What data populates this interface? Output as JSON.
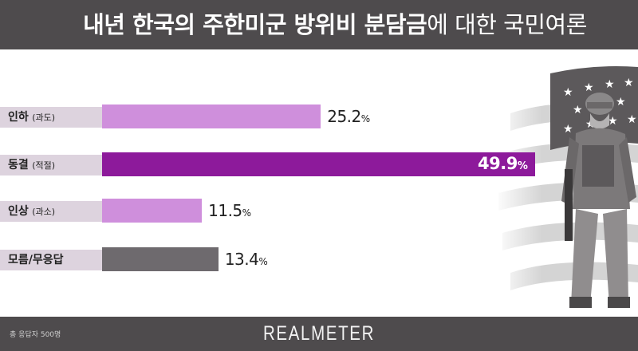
{
  "header": {
    "title_bold": "내년 한국의 주한미군 방위비 분담금",
    "title_light": "에 대한 국민여론"
  },
  "chart_data": {
    "type": "bar",
    "orientation": "horizontal",
    "title": "내년 한국의 주한미군 방위비 분담금에 대한 국민여론",
    "categories": [
      {
        "main": "인하",
        "sub": "(과도)"
      },
      {
        "main": "동결",
        "sub": "(적절)"
      },
      {
        "main": "인상",
        "sub": "(과소)"
      },
      {
        "main": "모름/무응답",
        "sub": ""
      }
    ],
    "values": [
      25.2,
      49.9,
      11.5,
      13.4
    ],
    "value_unit": "%",
    "colors": [
      "#cf8fdc",
      "#8d1a9b",
      "#cf8fdc",
      "#6e6a6e"
    ],
    "highlight_index": 1,
    "grid": false,
    "legend": "none"
  },
  "footer": {
    "note": "총 응답자 500명",
    "brand": "REALMETER"
  },
  "decoration": {
    "icon": "soldier-with-flag-icon"
  }
}
